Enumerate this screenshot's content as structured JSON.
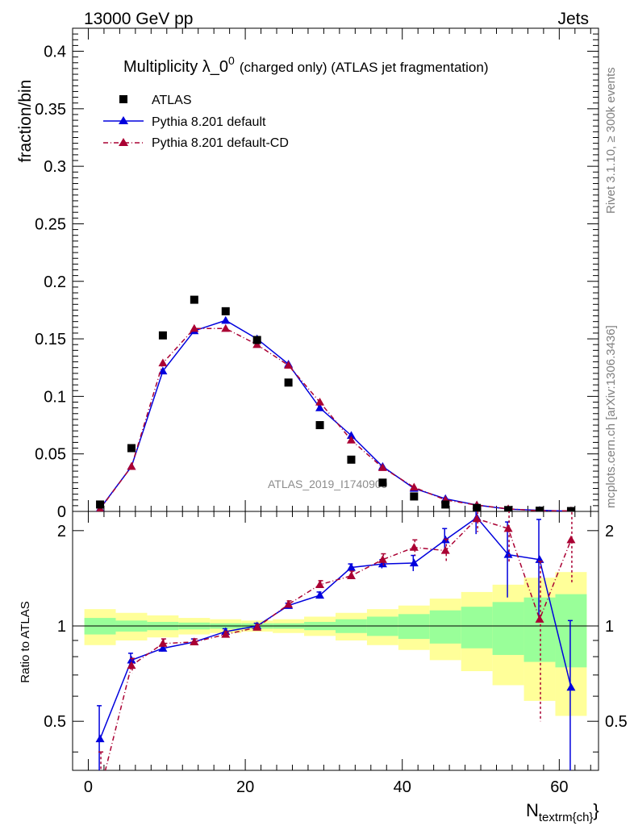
{
  "header": {
    "left": "13000 GeV pp",
    "right": "Jets"
  },
  "side_labels": {
    "rivet": "Rivet 3.1.10, ≥ 300k events",
    "mcplots": "mcplots.cern.ch [arXiv:1306.3436]"
  },
  "chart_data": {
    "type": "scatter",
    "title_main": "Multiplicity λ_0",
    "title_sup": "0",
    "title_rest": "(charged only) (ATLAS jet fragmentation)",
    "watermark": "ATLAS_2019_I1740909",
    "ylabel": "fraction/bin",
    "ratio_ylabel": "Ratio to ATLAS",
    "xlabel_main": "N",
    "xlabel_sub": "textrm{ch}",
    "xlim": [
      -2,
      65
    ],
    "ylim": [
      0,
      0.42
    ],
    "ratio_ylim": [
      0.35,
      2.3
    ],
    "x_ticks": [
      0,
      20,
      40,
      60
    ],
    "y_ticks": [
      0,
      0.05,
      0.1,
      0.15,
      0.2,
      0.25,
      0.3,
      0.35,
      0.4
    ],
    "y_tick_labels": [
      "0",
      "0.05",
      "0.1",
      "0.15",
      "0.2",
      "0.25",
      "0.3",
      "0.35",
      "0.4"
    ],
    "ratio_ticks": [
      0.5,
      1,
      2
    ],
    "ratio_tick_labels": [
      "0.5",
      "1",
      "2"
    ],
    "legend": {
      "position": "top-left",
      "entries": [
        "ATLAS",
        "Pythia 8.201 default",
        "Pythia 8.201 default-CD"
      ]
    },
    "x": [
      1.5,
      5.5,
      9.5,
      13.5,
      17.5,
      21.5,
      25.5,
      29.5,
      33.5,
      37.5,
      41.5,
      45.5,
      49.5,
      53.5,
      57.5,
      61.5
    ],
    "bin_edges": [
      -0.5,
      3.5,
      7.5,
      11.5,
      15.5,
      19.5,
      23.5,
      27.5,
      31.5,
      35.5,
      39.5,
      43.5,
      47.5,
      51.5,
      55.5,
      59.5,
      63.5
    ],
    "series": [
      {
        "name": "ATLAS",
        "color": "#000000",
        "values": [
          0.006,
          0.055,
          0.153,
          0.184,
          0.174,
          0.149,
          0.112,
          0.075,
          0.045,
          0.025,
          0.013,
          0.006,
          0.003,
          0.0012,
          0.0006,
          0.0003
        ]
      },
      {
        "name": "Pythia 8.201 default",
        "color": "#0000dd",
        "values": [
          0.0025,
          0.039,
          0.122,
          0.157,
          0.166,
          0.15,
          0.128,
          0.09,
          0.066,
          0.039,
          0.02,
          0.011,
          0.0055,
          0.002,
          0.001,
          0.0002
        ],
        "ratio": [
          0.44,
          0.78,
          0.85,
          0.89,
          0.96,
          1.0,
          1.16,
          1.25,
          1.53,
          1.57,
          1.58,
          1.87,
          2.2,
          1.68,
          1.62,
          0.64
        ],
        "ratio_err": [
          0.12,
          0.04,
          0.02,
          0.02,
          0.02,
          0.02,
          0.02,
          0.03,
          0.04,
          0.05,
          0.09,
          0.16,
          0.25,
          0.45,
          0.55,
          0.4
        ]
      },
      {
        "name": "Pythia 8.201 default-CD",
        "color": "#aa0033",
        "values": [
          0.002,
          0.039,
          0.129,
          0.159,
          0.159,
          0.145,
          0.127,
          0.095,
          0.062,
          0.038,
          0.021,
          0.01,
          0.0055,
          0.0022,
          0.0005,
          0.0005
        ],
        "ratio": [
          0.3,
          0.75,
          0.88,
          0.89,
          0.94,
          0.99,
          1.17,
          1.35,
          1.44,
          1.62,
          1.77,
          1.73,
          2.18,
          2.03,
          1.05,
          1.87
        ],
        "ratio_err": [
          0.1,
          0.04,
          0.03,
          0.02,
          0.02,
          0.02,
          0.03,
          0.04,
          0.05,
          0.07,
          0.1,
          0.15,
          0.2,
          0.45,
          0.55,
          0.5
        ]
      }
    ],
    "bands": {
      "inner_color": "#99ff99",
      "outer_color": "#ffff99",
      "inner_halfwidth": [
        0.06,
        0.04,
        0.03,
        0.025,
        0.02,
        0.02,
        0.02,
        0.03,
        0.05,
        0.07,
        0.09,
        0.12,
        0.15,
        0.19,
        0.23,
        0.26
      ],
      "outer_halfwidth": [
        0.13,
        0.1,
        0.08,
        0.06,
        0.05,
        0.04,
        0.05,
        0.07,
        0.1,
        0.13,
        0.16,
        0.22,
        0.28,
        0.35,
        0.42,
        0.48
      ]
    }
  }
}
